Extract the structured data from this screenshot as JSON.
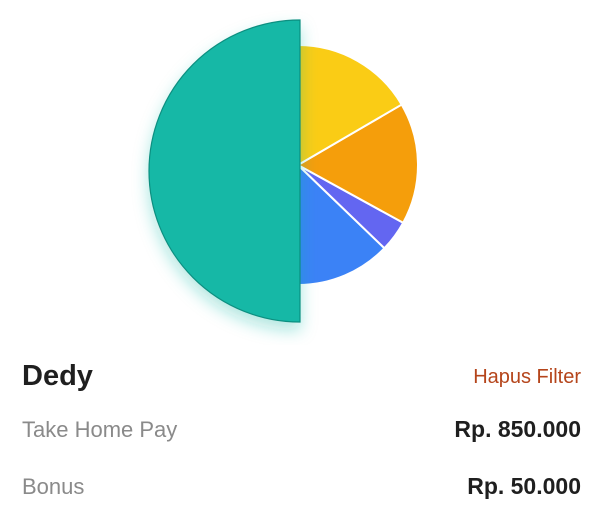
{
  "chart_data": {
    "type": "pie",
    "start": "top",
    "direction": "counterclockwise",
    "highlighted_index": 0,
    "slices": [
      {
        "value": 50.0,
        "color": "#14b8a6"
      },
      {
        "value": 12.8,
        "color": "#3b82f6"
      },
      {
        "value": 4.2,
        "color": "#6366f1"
      },
      {
        "value": 16.4,
        "color": "#f59e0b"
      },
      {
        "value": 16.6,
        "color": "#facc15"
      }
    ]
  },
  "detail": {
    "name": "Dedy",
    "clear_filter_label": "Hapus Filter",
    "rows": [
      {
        "label": "Take Home Pay",
        "value": "Rp. 850.000"
      },
      {
        "label": "Bonus",
        "value": "Rp. 50.000"
      }
    ]
  },
  "colors": {
    "accent": "#b5451b"
  }
}
